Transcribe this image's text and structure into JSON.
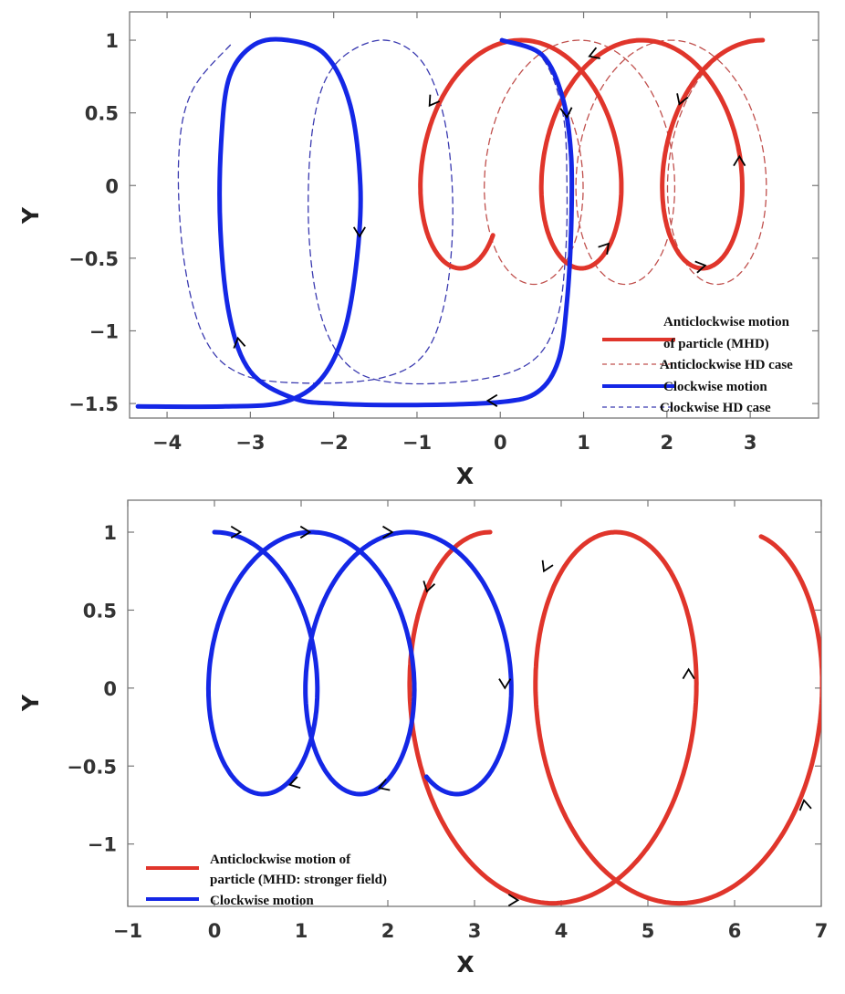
{
  "colors": {
    "red": "#e0352b",
    "red_dashed": "#c0504d",
    "blue": "#1427e6",
    "blue_dashed": "#3a3ab0",
    "arrow": "#000000",
    "axis": "#777777"
  },
  "chart_data": [
    {
      "type": "line",
      "title": "",
      "xlabel": "X",
      "ylabel": "Y",
      "xlim": [
        -4.45,
        3.82
      ],
      "ylim": [
        -1.6,
        1.195
      ],
      "xticks": [
        -4,
        -3,
        -2,
        -1,
        0,
        1,
        2,
        3
      ],
      "xtick_labels": [
        "−4",
        "−3",
        "−2",
        "−1",
        "0",
        "1",
        "2",
        "3"
      ],
      "yticks": [
        1,
        0.5,
        0,
        -0.5,
        -1,
        -1.5
      ],
      "ytick_labels": [
        "1",
        "0.5",
        "0",
        "−0.5",
        "−1",
        "−1.5"
      ],
      "grid": false,
      "legend_position": "bottom-right",
      "series": [
        {
          "name": "Anticlockwise motion of particle (MHD)",
          "legend_lines": [
            "Anticlockwise motion",
            "of particle (MHD)"
          ],
          "style": "solid",
          "color_key": "red",
          "parametric": {
            "x0": 3.15,
            "drift": -0.231,
            "ax": -0.81,
            "yc": 0.215,
            "ay": 0.785,
            "t_start": 0,
            "t_end": 16.49
          }
        },
        {
          "name": "Anticlockwise HD case",
          "legend_lines": [
            "Anticlockwise HD case"
          ],
          "style": "dashed",
          "color_key": "red_dashed",
          "parametric": {
            "x0": 3.15,
            "drift": -0.175,
            "ax": -0.85,
            "yc": 0.16,
            "ay": 0.84,
            "t_start": 0.3,
            "t_end": 17.7
          }
        },
        {
          "name": "Clockwise motion",
          "legend_lines": [
            "Clockwise motion"
          ],
          "style": "solid",
          "color_key": "blue",
          "points": [
            [
              0.02,
              1.0
            ],
            [
              0.5,
              0.9
            ],
            [
              0.75,
              0.6
            ],
            [
              0.85,
              0.2
            ],
            [
              0.85,
              -0.3
            ],
            [
              0.8,
              -0.8
            ],
            [
              0.7,
              -1.2
            ],
            [
              0.45,
              -1.42
            ],
            [
              0,
              -1.49
            ],
            [
              -1,
              -1.51
            ],
            [
              -2,
              -1.5
            ],
            [
              -2.5,
              -1.46
            ],
            [
              -3.0,
              -1.28
            ],
            [
              -3.25,
              -0.9
            ],
            [
              -3.36,
              -0.3
            ],
            [
              -3.35,
              0.3
            ],
            [
              -3.25,
              0.75
            ],
            [
              -2.95,
              0.97
            ],
            [
              -2.55,
              1.0
            ],
            [
              -2.1,
              0.9
            ],
            [
              -1.8,
              0.55
            ],
            [
              -1.68,
              0
            ],
            [
              -1.72,
              -0.5
            ],
            [
              -1.87,
              -1.0
            ],
            [
              -2.15,
              -1.33
            ],
            [
              -2.6,
              -1.49
            ],
            [
              -3.3,
              -1.52
            ],
            [
              -4.35,
              -1.52
            ]
          ]
        },
        {
          "name": "Clockwise HD case",
          "legend_lines": [
            "Clockwise HD case"
          ],
          "style": "dashed",
          "color_key": "blue_dashed",
          "points": [
            [
              0.05,
              1.0
            ],
            [
              0.5,
              0.88
            ],
            [
              0.75,
              0.5
            ],
            [
              0.8,
              0
            ],
            [
              0.78,
              -0.5
            ],
            [
              0.68,
              -0.92
            ],
            [
              0.4,
              -1.2
            ],
            [
              -0.2,
              -1.33
            ],
            [
              -1.2,
              -1.36
            ],
            [
              -1.8,
              -1.25
            ],
            [
              -2.15,
              -0.9
            ],
            [
              -2.3,
              -0.3
            ],
            [
              -2.25,
              0.4
            ],
            [
              -2.0,
              0.82
            ],
            [
              -1.44,
              1.0
            ],
            [
              -0.95,
              0.86
            ],
            [
              -0.67,
              0.45
            ],
            [
              -0.57,
              -0.15
            ],
            [
              -0.65,
              -0.75
            ],
            [
              -0.9,
              -1.15
            ],
            [
              -1.4,
              -1.32
            ],
            [
              -2.3,
              -1.36
            ],
            [
              -3.1,
              -1.3
            ],
            [
              -3.55,
              -1.05
            ],
            [
              -3.8,
              -0.5
            ],
            [
              -3.86,
              0.2
            ],
            [
              -3.7,
              0.65
            ],
            [
              -3.22,
              0.98
            ]
          ]
        }
      ],
      "arrows": [
        {
          "x": 1.07,
          "y": 0.89,
          "angle": 200
        },
        {
          "x": -0.85,
          "y": 0.55,
          "angle": 235
        },
        {
          "x": 2.15,
          "y": 0.56,
          "angle": 250
        },
        {
          "x": 2.87,
          "y": 0.2,
          "angle": 90
        },
        {
          "x": 1.3,
          "y": -0.4,
          "angle": 50
        },
        {
          "x": 2.46,
          "y": -0.55,
          "angle": 10
        },
        {
          "x": 0.8,
          "y": 0.47,
          "angle": 275
        },
        {
          "x": -1.69,
          "y": -0.35,
          "angle": 270
        },
        {
          "x": -3.15,
          "y": -1.05,
          "angle": 100
        },
        {
          "x": -0.15,
          "y": -1.48,
          "angle": 180
        }
      ]
    },
    {
      "type": "line",
      "title": "",
      "xlabel": "X",
      "ylabel": "Y",
      "xlim": [
        -1,
        7
      ],
      "ylim": [
        -1.4,
        1.205
      ],
      "xticks": [
        -1,
        0,
        1,
        2,
        3,
        4,
        5,
        6,
        7
      ],
      "xtick_labels": [
        "−1",
        "0",
        "1",
        "2",
        "3",
        "4",
        "5",
        "6",
        "7"
      ],
      "yticks": [
        1,
        0.5,
        0,
        -0.5,
        -1
      ],
      "ytick_labels": [
        "1",
        "0.5",
        "0",
        "−0.5",
        "−1"
      ],
      "grid": false,
      "legend_position": "bottom-left",
      "series": [
        {
          "name": "Anticlockwise motion of particle (MHD: stronger field)",
          "legend_lines": [
            "Anticlockwise motion of",
            "particle (MHD: stronger field)"
          ],
          "style": "solid",
          "color_key": "red",
          "parametric": {
            "x0": 3.18,
            "drift": 0.231,
            "ax": -1.27,
            "yc": -0.19,
            "ay": 1.19,
            "t_start": 0,
            "t_end": 12.35
          }
        },
        {
          "name": "Clockwise motion",
          "legend_lines": [
            "Clockwise motion"
          ],
          "style": "solid",
          "color_key": "blue",
          "parametric": {
            "x0": 0,
            "drift": 0.178,
            "ax": 0.89,
            "yc": 0.16,
            "ay": 0.84,
            "t_start": 0,
            "t_end": 16.23
          }
        }
      ],
      "arrows": [
        {
          "x": 0.3,
          "y": 1.0,
          "angle": 0
        },
        {
          "x": 1.1,
          "y": 1.0,
          "angle": 0
        },
        {
          "x": 2.05,
          "y": 1.0,
          "angle": 0
        },
        {
          "x": 3.35,
          "y": 0.0,
          "angle": 270
        },
        {
          "x": 1.9,
          "y": -0.64,
          "angle": 200
        },
        {
          "x": 0.87,
          "y": -0.62,
          "angle": 195
        },
        {
          "x": 2.45,
          "y": 0.62,
          "angle": 255
        },
        {
          "x": 3.8,
          "y": 0.75,
          "angle": 245
        },
        {
          "x": 5.47,
          "y": 0.12,
          "angle": 90
        },
        {
          "x": 6.8,
          "y": -0.72,
          "angle": 100
        },
        {
          "x": 3.5,
          "y": -1.36,
          "angle": 0
        }
      ]
    }
  ]
}
